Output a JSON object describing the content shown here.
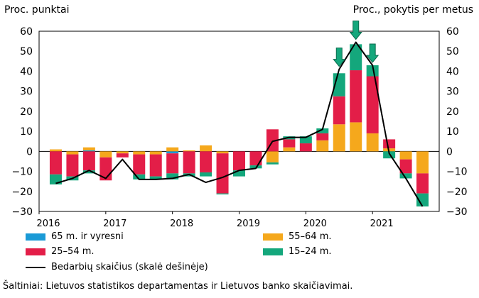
{
  "chart_data": {
    "type": "bar",
    "stacked": true,
    "left_axis_label": "Proc. punktai",
    "right_axis_label": "Proc., pokytis per metus",
    "ylim": [
      -30,
      60
    ],
    "y_ticks": [
      "60",
      "50",
      "40",
      "30",
      "20",
      "10",
      "0",
      "−10",
      "−20",
      "−30"
    ],
    "year_labels": [
      "2016",
      "2017",
      "2018",
      "2019",
      "2020",
      "2021"
    ],
    "categories": [
      "2016 Q1",
      "2016 Q2",
      "2016 Q3",
      "2016 Q4",
      "2017 Q1",
      "2017 Q2",
      "2017 Q3",
      "2017 Q4",
      "2018 Q1",
      "2018 Q2",
      "2018 Q3",
      "2018 Q4",
      "2019 Q1",
      "2019 Q2",
      "2019 Q3",
      "2019 Q4",
      "2020 Q1",
      "2020 Q2",
      "2020 Q3",
      "2020 Q4",
      "2021 Q1",
      "2021 Q2",
      "2021 Q3"
    ],
    "series": [
      {
        "name": "65 m. ir vyresni",
        "color": "#1a9ad6",
        "values": [
          0,
          0,
          0.5,
          0,
          0,
          0,
          0,
          -1,
          0,
          0,
          0,
          0,
          0,
          0,
          0,
          0,
          0,
          0,
          0,
          0,
          0,
          0,
          0
        ]
      },
      {
        "name": "55–64 m.",
        "color": "#f5a81c",
        "values": [
          1,
          -1.5,
          1.5,
          -3,
          -1,
          -1.5,
          -1.5,
          2,
          0.5,
          3,
          -1,
          0,
          0,
          -5.5,
          2,
          0,
          5.5,
          13.5,
          14.5,
          9,
          1.5,
          -4,
          -11
        ]
      },
      {
        "name": "25–54 m.",
        "color": "#e31e48",
        "values": [
          -11.5,
          -11,
          -9.5,
          -11.5,
          -2,
          -10,
          -11,
          -10,
          -11,
          -10.5,
          -20,
          -9.5,
          -7,
          11,
          4,
          4,
          3.5,
          14,
          26,
          28.5,
          4.5,
          -7,
          -10
        ]
      },
      {
        "name": "15–24 m.",
        "color": "#14a77c",
        "values": [
          -5,
          -2,
          -1.5,
          0,
          0,
          -2.5,
          -1.5,
          -3,
          -1.5,
          -2,
          -0.5,
          -3,
          -1.5,
          -1,
          1.5,
          3.5,
          2.5,
          11.5,
          13,
          5.5,
          -3.5,
          -2.5,
          -6.5
        ]
      }
    ],
    "line": {
      "name": "Bedarbių skaičius (skalė dešinėje)",
      "color": "#000000",
      "values": [
        -16,
        -13.5,
        -9.5,
        -13.5,
        -4,
        -14,
        -14,
        -13.5,
        -11.5,
        -15.5,
        -13,
        -9.5,
        -8.5,
        5,
        7,
        7,
        11,
        41,
        54.5,
        43,
        -1,
        -13.5,
        -27.5
      ]
    },
    "arrows": {
      "categories": [
        "2020 Q2",
        "2020 Q3",
        "2020 Q4"
      ],
      "color": "#14a77c"
    },
    "legend_position": "bottom"
  },
  "legend": [
    {
      "label": "65 m. ir vyresni",
      "color": "#1a9ad6",
      "kind": "bar"
    },
    {
      "label": "55–64 m.",
      "color": "#f5a81c",
      "kind": "bar"
    },
    {
      "label": "25–54 m.",
      "color": "#e31e48",
      "kind": "bar"
    },
    {
      "label": "15–24 m.",
      "color": "#14a77c",
      "kind": "bar"
    },
    {
      "label": "Bedarbių skaičius (skalė dešinėje)",
      "color": "#000000",
      "kind": "line"
    }
  ],
  "source": "Šaltiniai: Lietuvos  statistikos departamentas ir Lietuvos banko skaičiavimai."
}
